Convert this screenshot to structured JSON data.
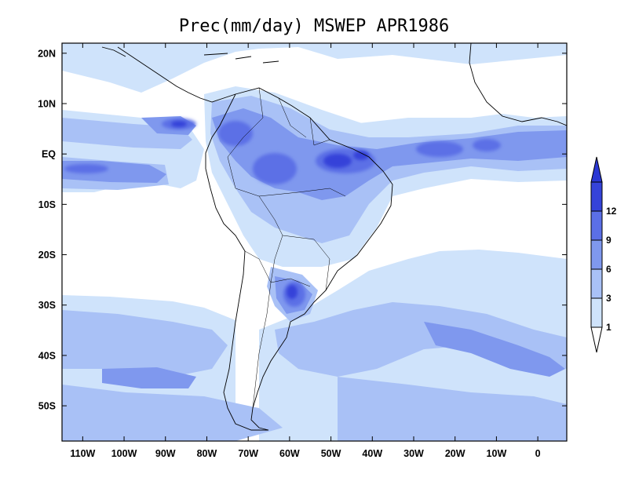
{
  "title": "Prec(mm/day) MSWEP APR1986",
  "map": {
    "projection": "latlon",
    "lon_range": [
      -115,
      7
    ],
    "lat_range": [
      -57,
      22
    ],
    "x_ticks": [
      {
        "lon": -110,
        "label": "110W"
      },
      {
        "lon": -100,
        "label": "100W"
      },
      {
        "lon": -90,
        "label": "90W"
      },
      {
        "lon": -80,
        "label": "80W"
      },
      {
        "lon": -70,
        "label": "70W"
      },
      {
        "lon": -60,
        "label": "60W"
      },
      {
        "lon": -50,
        "label": "50W"
      },
      {
        "lon": -40,
        "label": "40W"
      },
      {
        "lon": -30,
        "label": "30W"
      },
      {
        "lon": -20,
        "label": "20W"
      },
      {
        "lon": -10,
        "label": "10W"
      },
      {
        "lon": 0,
        "label": "0"
      }
    ],
    "y_ticks": [
      {
        "lat": 20,
        "label": "20N"
      },
      {
        "lat": 10,
        "label": "10N"
      },
      {
        "lat": 0,
        "label": "EQ"
      },
      {
        "lat": -10,
        "label": "10S"
      },
      {
        "lat": -20,
        "label": "20S"
      },
      {
        "lat": -30,
        "label": "30S"
      },
      {
        "lat": -40,
        "label": "40S"
      },
      {
        "lat": -50,
        "label": "50S"
      }
    ]
  },
  "colorbar": {
    "levels": [
      "1",
      "3",
      "6",
      "9",
      "12"
    ],
    "colors": [
      "#cfe3fb",
      "#a9c1f6",
      "#7f98ee",
      "#5b6fe6",
      "#3543d9"
    ],
    "below_color": "#ffffff",
    "above_color": "#2a37d4"
  }
}
